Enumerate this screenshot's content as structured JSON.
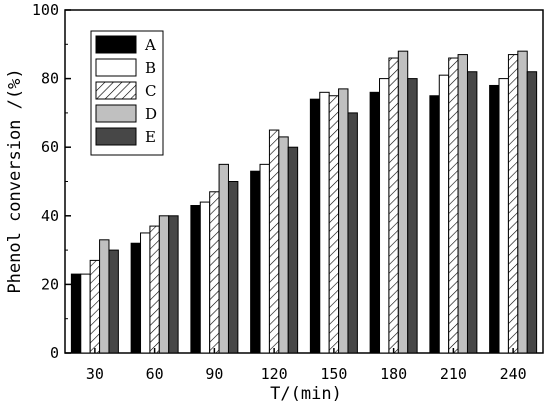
{
  "chart_data": {
    "type": "bar",
    "xlabel": "T/(min)",
    "ylabel": "Phenol conversion /(%)",
    "ylim": [
      0,
      100
    ],
    "yticks": [
      0,
      20,
      40,
      60,
      80,
      100
    ],
    "categories": [
      "30",
      "60",
      "90",
      "120",
      "150",
      "180",
      "210",
      "240"
    ],
    "series": [
      {
        "name": "A",
        "fill": "#000000",
        "pattern": "solid",
        "values": [
          23,
          32,
          43,
          53,
          74,
          76,
          75,
          78
        ]
      },
      {
        "name": "B",
        "fill": "#ffffff",
        "pattern": "solid",
        "values": [
          23,
          35,
          44,
          55,
          76,
          80,
          81,
          80
        ]
      },
      {
        "name": "C",
        "fill": "#ffffff",
        "pattern": "hatch",
        "values": [
          27,
          37,
          47,
          65,
          75,
          86,
          86,
          87
        ]
      },
      {
        "name": "D",
        "fill": "#c0c0c0",
        "pattern": "solid",
        "values": [
          33,
          40,
          55,
          63,
          77,
          88,
          87,
          88
        ]
      },
      {
        "name": "E",
        "fill": "#474747",
        "pattern": "solid",
        "values": [
          30,
          40,
          50,
          60,
          70,
          80,
          82,
          82
        ]
      }
    ],
    "legend_position": "top-left",
    "grid": false
  }
}
